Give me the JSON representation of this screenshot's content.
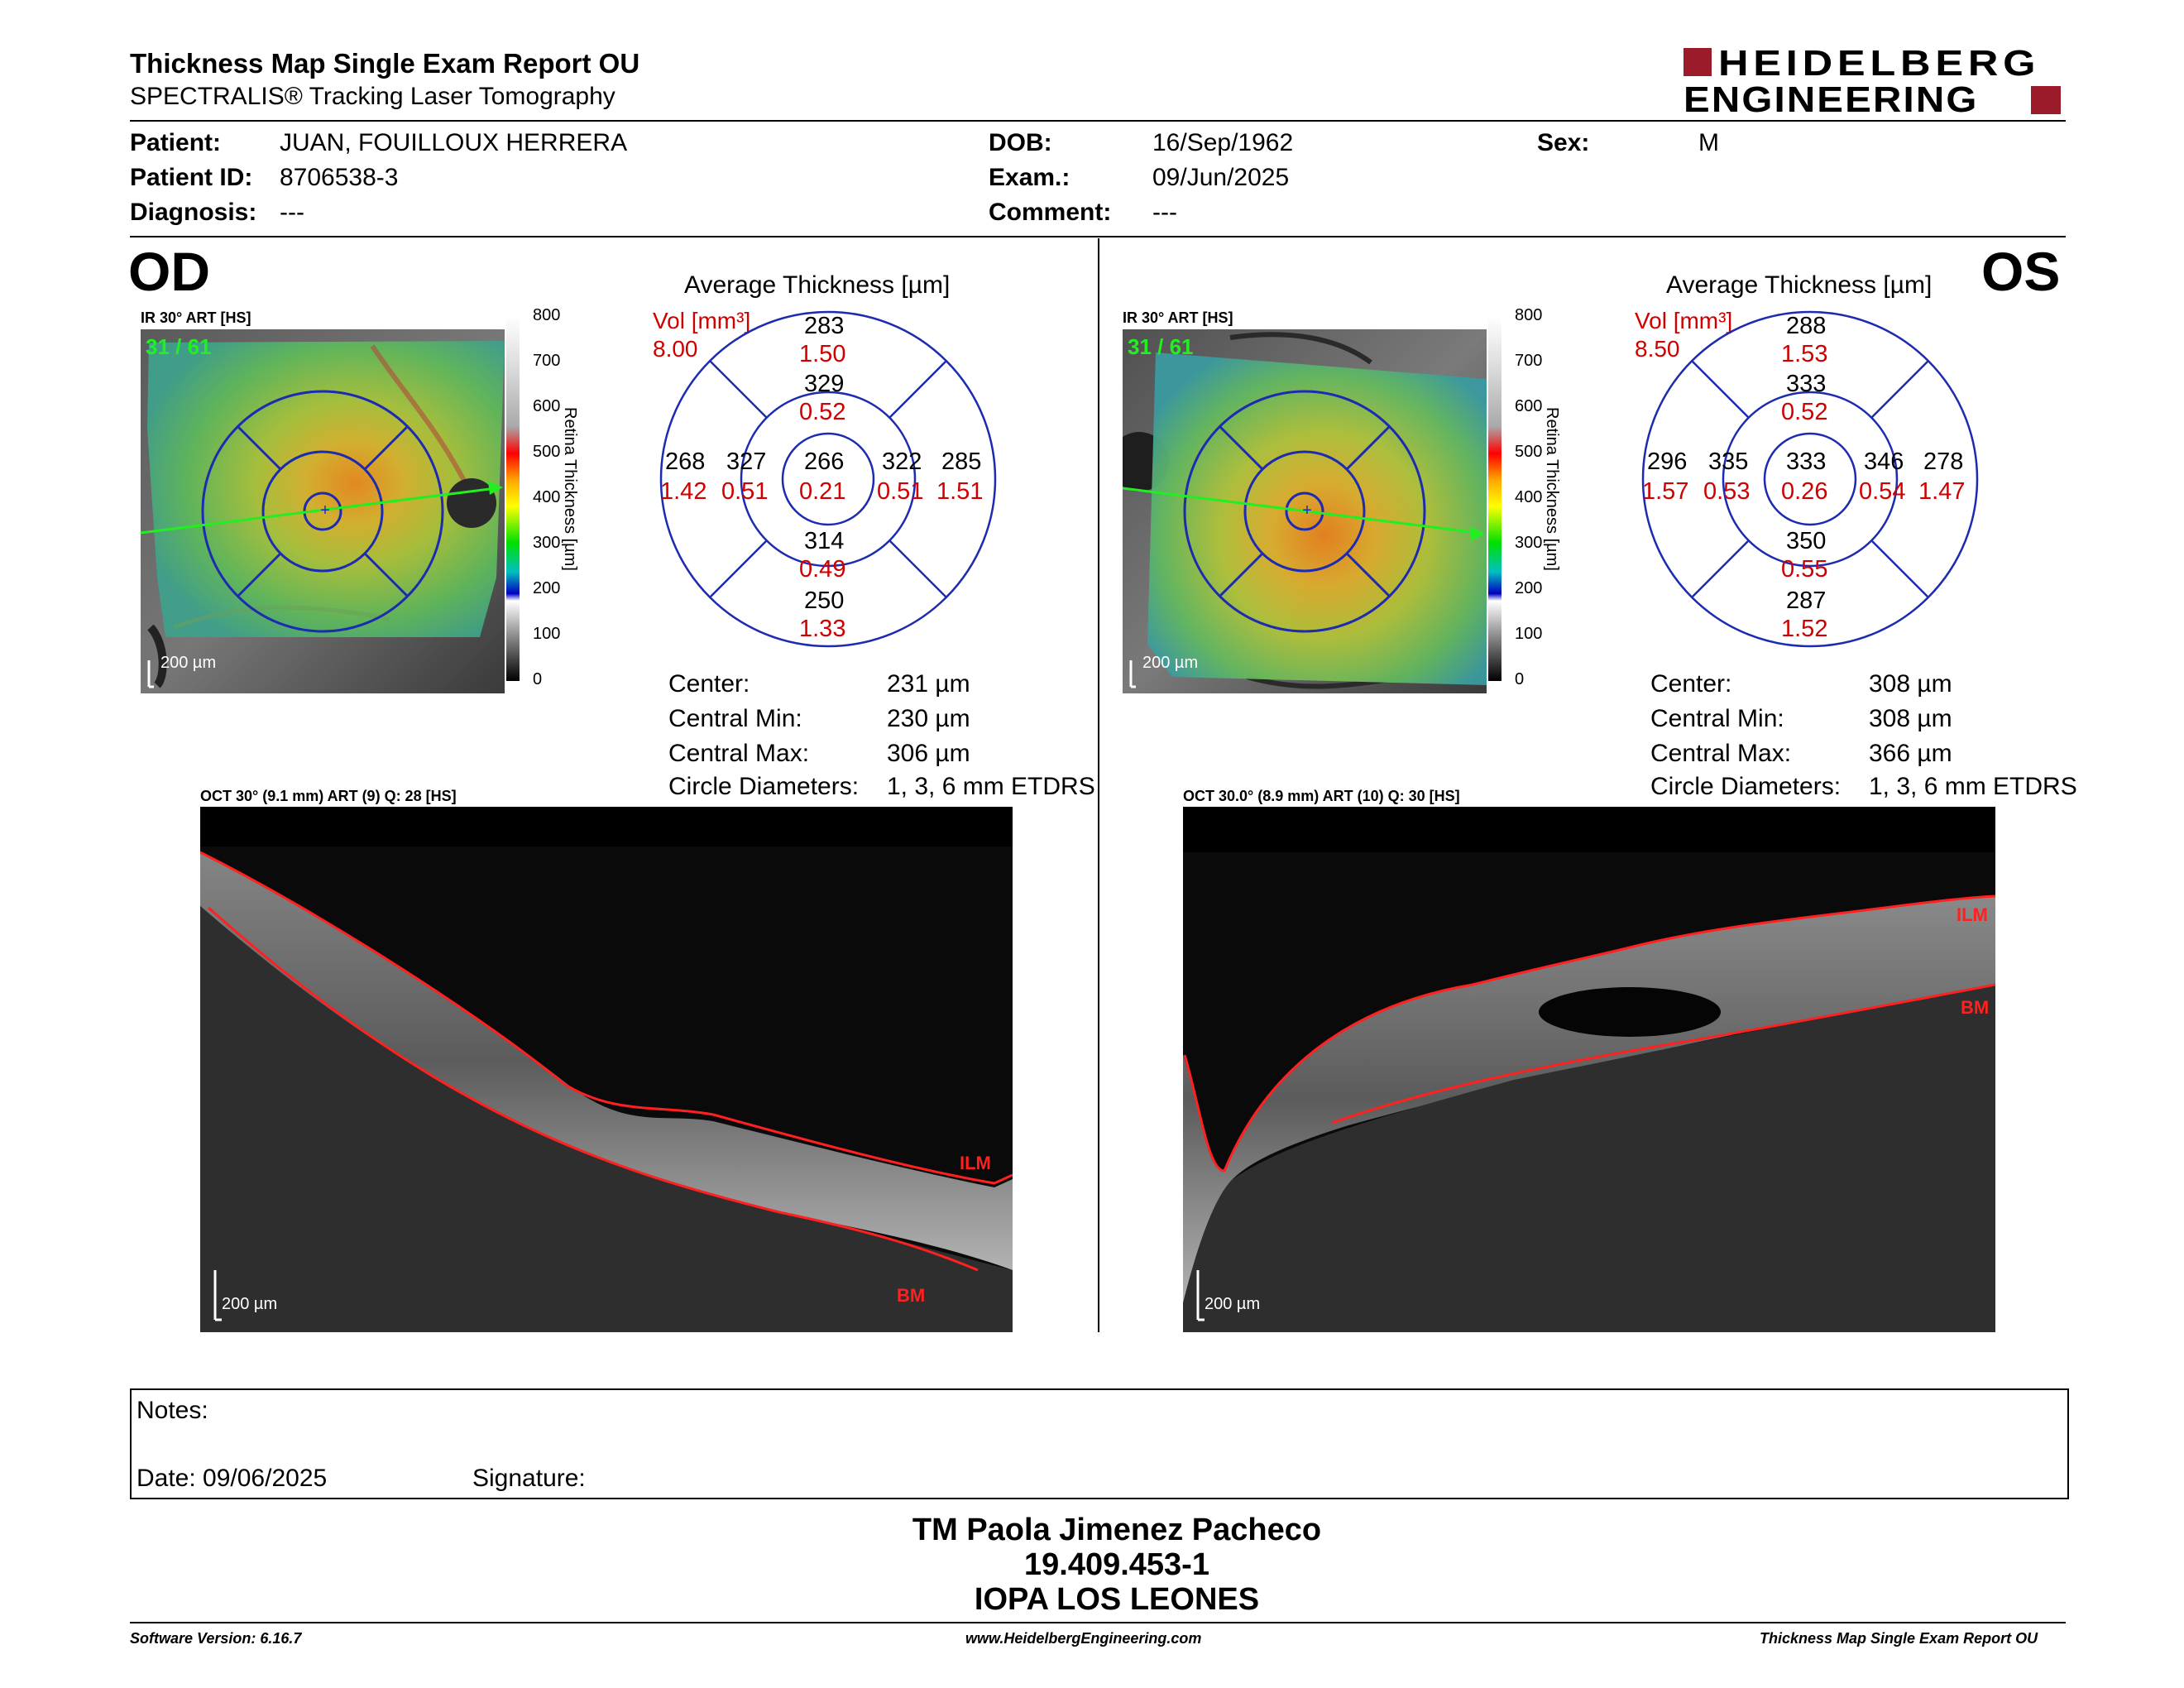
{
  "header": {
    "title": "Thickness Map Single Exam Report OU",
    "subtitle": "SPECTRALIS® Tracking Laser Tomography",
    "logo_line1": "HEIDELBERG",
    "logo_line2": "ENGINEERING"
  },
  "patient": {
    "patient_label": "Patient:",
    "patient_value": "JUAN, FOUILLOUX HERRERA",
    "id_label": "Patient ID:",
    "id_value": "8706538-3",
    "diag_label": "Diagnosis:",
    "diag_value": "---",
    "dob_label": "DOB:",
    "dob_value": "16/Sep/1962",
    "exam_label": "Exam.:",
    "exam_value": "09/Jun/2025",
    "comment_label": "Comment:",
    "comment_value": "---",
    "sex_label": "Sex:",
    "sex_value": "M"
  },
  "common": {
    "avg_title": "Average Thickness [µm]",
    "vol_label": "Vol [mm³]",
    "colorbar_ticks": [
      "800",
      "700",
      "600",
      "500",
      "400",
      "300",
      "200",
      "100",
      "0"
    ],
    "colorbar_label": "Retina  Thickness [µm]",
    "scale_200": "200 µm",
    "ilm": "ILM",
    "bm": "BM",
    "center_label": "Center:",
    "cmin_label": "Central Min:",
    "cmax_label": "Central Max:",
    "diam_label": "Circle Diameters:",
    "diam_value": "1, 3, 6 mm ETDRS"
  },
  "od": {
    "eye_label": "OD",
    "ir_label": "IR 30° ART [HS]",
    "scan_count": "31 / 61",
    "oct_label": "OCT 30° (9.1 mm) ART (9) Q: 28 [HS]",
    "vol_total": "8.00",
    "grid": {
      "outer_top": "283",
      "outer_top_v": "1.50",
      "inner_top": "329",
      "inner_top_v": "0.52",
      "outer_left": "268",
      "outer_left_v": "1.42",
      "inner_left": "327",
      "inner_left_v": "0.51",
      "center": "266",
      "center_v": "0.21",
      "inner_right": "322",
      "inner_right_v": "0.51",
      "outer_right": "285",
      "outer_right_v": "1.51",
      "inner_bottom": "314",
      "inner_bottom_v": "0.49",
      "outer_bottom": "250",
      "outer_bottom_v": "1.33"
    },
    "center_value": "231 µm",
    "cmin_value": "230 µm",
    "cmax_value": "306 µm"
  },
  "os": {
    "eye_label": "OS",
    "ir_label": "IR 30° ART [HS]",
    "scan_count": "31 / 61",
    "oct_label": "OCT 30.0° (8.9 mm) ART (10) Q: 30 [HS]",
    "vol_total": "8.50",
    "grid": {
      "outer_top": "288",
      "outer_top_v": "1.53",
      "inner_top": "333",
      "inner_top_v": "0.52",
      "outer_left": "296",
      "outer_left_v": "1.57",
      "inner_left": "335",
      "inner_left_v": "0.53",
      "center": "333",
      "center_v": "0.26",
      "inner_right": "346",
      "inner_right_v": "0.54",
      "outer_right": "278",
      "outer_right_v": "1.47",
      "inner_bottom": "350",
      "inner_bottom_v": "0.55",
      "outer_bottom": "287",
      "outer_bottom_v": "1.52"
    },
    "center_value": "308 µm",
    "cmin_value": "308 µm",
    "cmax_value": "366 µm"
  },
  "notes": {
    "notes_label": "Notes:",
    "date_label": "Date: 09/06/2025",
    "signature_label": "Signature:"
  },
  "signoff": {
    "name": "TM Paola Jimenez Pacheco",
    "rut": "19.409.453-1",
    "clinic": "IOPA LOS LEONES"
  },
  "footer": {
    "software": "Software Version: 6.16.7",
    "website": "www.HeidelbergEngineering.com",
    "report": "Thickness Map Single Exam Report OU"
  },
  "colors": {
    "ring_blue": "#1c2bb0",
    "red_value": "#d00000",
    "logo_red": "#9b1b2a",
    "scan_green": "#22ee22"
  }
}
